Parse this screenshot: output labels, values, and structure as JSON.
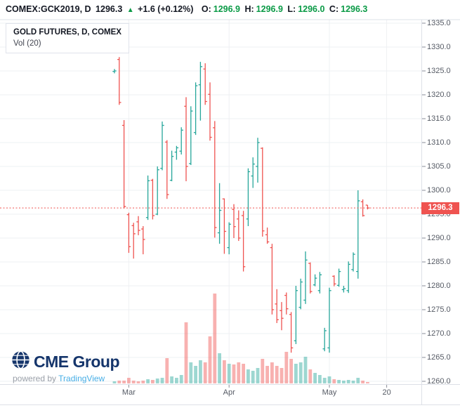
{
  "header": {
    "symbol_interval": "COMEX:GCK2019, D",
    "last": "1296.3",
    "arrow": "▲",
    "change": "+1.6 (+0.12%)",
    "o_label": "O:",
    "o_value": "1296.9",
    "h_label": "H:",
    "h_value": "1296.9",
    "l_label": "L:",
    "l_value": "1296.0",
    "c_label": "C:",
    "c_value": "1296.3"
  },
  "legend": {
    "title": "GOLD FUTURES, D, COMEX",
    "volume": "Vol (20)"
  },
  "watermark": {
    "brand": "CME Group",
    "powered_by": "powered by",
    "provider": "TradingView"
  },
  "colors": {
    "up": "#26a69a",
    "down": "#ef5350",
    "vol_up": "rgba(38,166,154,0.45)",
    "vol_down": "rgba(239,83,80,0.45)",
    "last_price": "#ef5350",
    "grid": "#eef0f3",
    "border": "#dde0e7",
    "axis_text": "#555a64",
    "header_green": "#0a9a46",
    "header_dark": "#131722",
    "cme_blue": "#15356b",
    "tradingview_blue": "#47aee6"
  },
  "chart_data": {
    "type": "ohlc-bar-with-volume",
    "title": "GOLD FUTURES, D, COMEX",
    "y_min": 1260,
    "y_max": 1335,
    "y_ticks": [
      1335,
      1330,
      1325,
      1320,
      1315,
      1310,
      1305,
      1300,
      1295,
      1290,
      1285,
      1280,
      1275,
      1270,
      1265,
      1260
    ],
    "x_ticks": [
      {
        "label": "Mar",
        "bar": 3
      },
      {
        "label": "Apr",
        "bar": 24
      },
      {
        "label": "May",
        "bar": 45
      },
      {
        "label": "20",
        "bar": 57
      }
    ],
    "last_price": 1296.3,
    "last_price_line": "dotted",
    "volume_units": "relative height (no numeric scale shown)",
    "bar_fields": [
      "open",
      "high",
      "low",
      "close",
      "volume_rel"
    ],
    "bars": [
      [
        1324.9,
        1325.4,
        1324.5,
        1325.0,
        3
      ],
      [
        1327.4,
        1327.9,
        1317.9,
        1318.4,
        4
      ],
      [
        1313.6,
        1314.7,
        1296.2,
        1296.6,
        4
      ],
      [
        1294.9,
        1295.3,
        1286.9,
        1288.2,
        8
      ],
      [
        1292.6,
        1293.2,
        1285.7,
        1290.9,
        4
      ],
      [
        1293.4,
        1294.6,
        1290.6,
        1291.6,
        3
      ],
      [
        1291.9,
        1292.5,
        1286.6,
        1289.7,
        4
      ],
      [
        1294.3,
        1303.1,
        1293.8,
        1302.0,
        6
      ],
      [
        1302.1,
        1302.4,
        1293.9,
        1294.7,
        5
      ],
      [
        1295.0,
        1305.0,
        1294.8,
        1304.3,
        7
      ],
      [
        1304.6,
        1314.4,
        1304.2,
        1313.6,
        8
      ],
      [
        1310.1,
        1310.5,
        1298.2,
        1299.1,
        36
      ],
      [
        1302.1,
        1308.3,
        1301.9,
        1307.1,
        10
      ],
      [
        1308.0,
        1309.3,
        1306.4,
        1308.9,
        8
      ],
      [
        1308.2,
        1313.2,
        1307.5,
        1312.6,
        12
      ],
      [
        1317.6,
        1319.5,
        1301.9,
        1305.0,
        87
      ],
      [
        1305.6,
        1317.6,
        1305.3,
        1316.6,
        30
      ],
      [
        1312.1,
        1322.6,
        1311.6,
        1321.9,
        25
      ],
      [
        1322.1,
        1326.9,
        1314.6,
        1325.9,
        33
      ],
      [
        1325.4,
        1326.6,
        1317.9,
        1318.6,
        30
      ],
      [
        1320.1,
        1322.6,
        1310.4,
        1311.1,
        67
      ],
      [
        1313.1,
        1314.5,
        1290.1,
        1292.2,
        128
      ],
      [
        1291.1,
        1301.5,
        1288.8,
        1295.8,
        43
      ],
      [
        1298.2,
        1298.3,
        1286.7,
        1291.4,
        33
      ],
      [
        1288.0,
        1293.3,
        1286.6,
        1292.9,
        28
      ],
      [
        1296.0,
        1297.1,
        1290.0,
        1292.4,
        27
      ],
      [
        1294.0,
        1295.8,
        1289.4,
        1290.0,
        30
      ],
      [
        1294.7,
        1295.7,
        1283.0,
        1284.0,
        28
      ],
      [
        1294.0,
        1304.6,
        1292.5,
        1303.9,
        20
      ],
      [
        1303.0,
        1306.9,
        1300.5,
        1305.5,
        18
      ],
      [
        1305.0,
        1311.0,
        1301.6,
        1310.0,
        22
      ],
      [
        1308.8,
        1309.0,
        1290.3,
        1291.5,
        35
      ],
      [
        1290.7,
        1292.2,
        1288.8,
        1289.2,
        25
      ],
      [
        1288.0,
        1288.8,
        1274.0,
        1275.0,
        30
      ],
      [
        1276.2,
        1279.3,
        1272.2,
        1272.9,
        25
      ],
      [
        1274.8,
        1276.6,
        1270.7,
        1273.2,
        22
      ],
      [
        1278.0,
        1278.6,
        1274.0,
        1275.2,
        45
      ],
      [
        1274.0,
        1274.5,
        1266.0,
        1267.0,
        35
      ],
      [
        1268.5,
        1280.0,
        1267.8,
        1279.0,
        28
      ],
      [
        1275.5,
        1281.5,
        1275.1,
        1280.8,
        30
      ],
      [
        1277.0,
        1287.2,
        1276.2,
        1285.4,
        38
      ],
      [
        1284.7,
        1284.9,
        1278.4,
        1278.8,
        20
      ],
      [
        1280.2,
        1282.4,
        1279.9,
        1281.6,
        15
      ],
      [
        1279.0,
        1282.9,
        1278.4,
        1282.3,
        12
      ],
      [
        1266.8,
        1271.2,
        1266.3,
        1270.6,
        8
      ],
      [
        1267.0,
        1279.6,
        1266.0,
        1279.0,
        10
      ],
      [
        1282.0,
        1282.2,
        1279.9,
        1280.4,
        6
      ],
      [
        1280.1,
        1283.6,
        1279.8,
        1283.0,
        5
      ],
      [
        1279.2,
        1280.0,
        1278.6,
        1279.4,
        4
      ],
      [
        1279.0,
        1285.1,
        1278.5,
        1284.5,
        5
      ],
      [
        1283.4,
        1287.0,
        1283.0,
        1286.6,
        4
      ],
      [
        1283.0,
        1300.0,
        1281.5,
        1297.8,
        8
      ],
      [
        1297.6,
        1298.1,
        1294.5,
        1294.7,
        4
      ],
      [
        1296.9,
        1296.9,
        1296.0,
        1296.3,
        2
      ]
    ]
  }
}
